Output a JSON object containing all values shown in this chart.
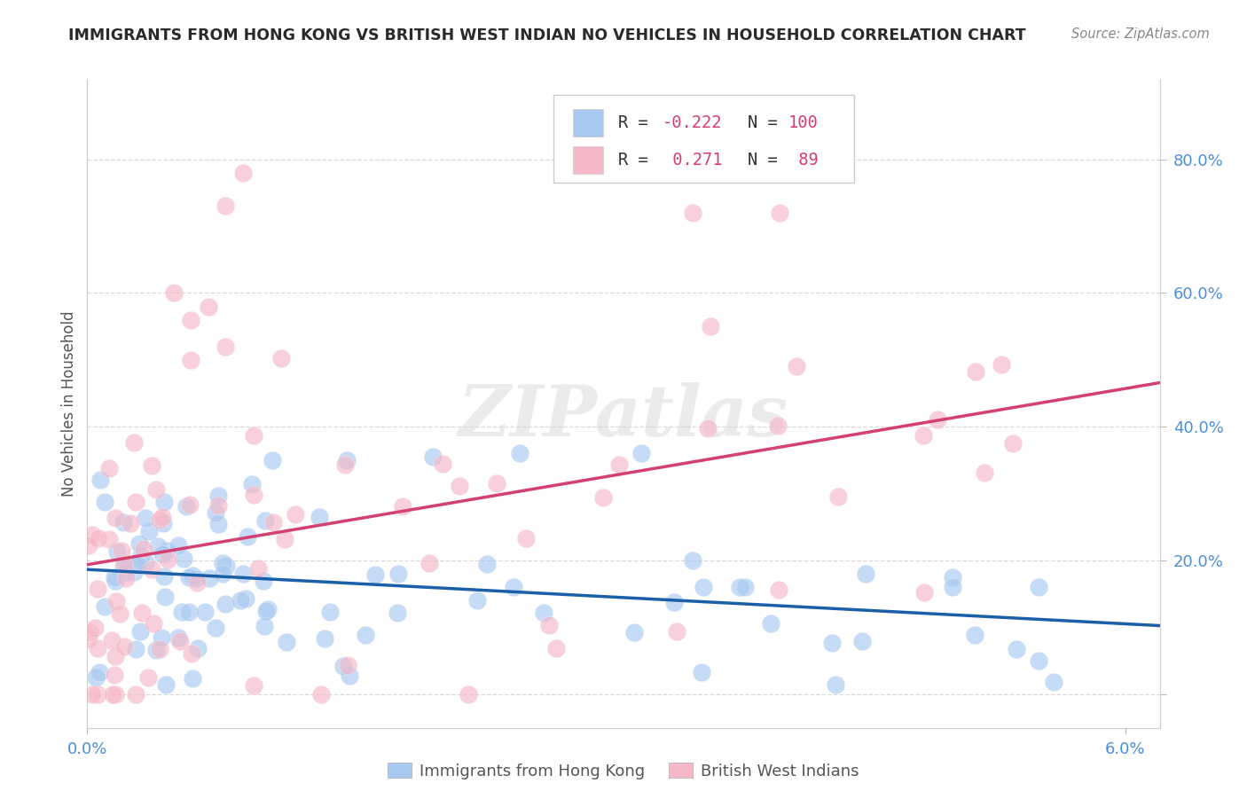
{
  "title": "IMMIGRANTS FROM HONG KONG VS BRITISH WEST INDIAN NO VEHICLES IN HOUSEHOLD CORRELATION CHART",
  "source": "Source: ZipAtlas.com",
  "ylabel": "No Vehicles in Household",
  "xlim": [
    0.0,
    0.062
  ],
  "ylim": [
    -0.05,
    0.92
  ],
  "blue_color": "#a8c8f0",
  "pink_color": "#f5b8c8",
  "blue_line_color": "#1a5fa8",
  "pink_line_color": "#d44070",
  "title_color": "#2a2a2a",
  "axis_label_color": "#555555",
  "tick_color": "#4a90d9",
  "background_color": "#ffffff",
  "grid_color": "#d0d0d0",
  "blue_intercept": 0.175,
  "blue_slope": -1.8,
  "pink_intercept": 0.155,
  "pink_slope": 3.8
}
